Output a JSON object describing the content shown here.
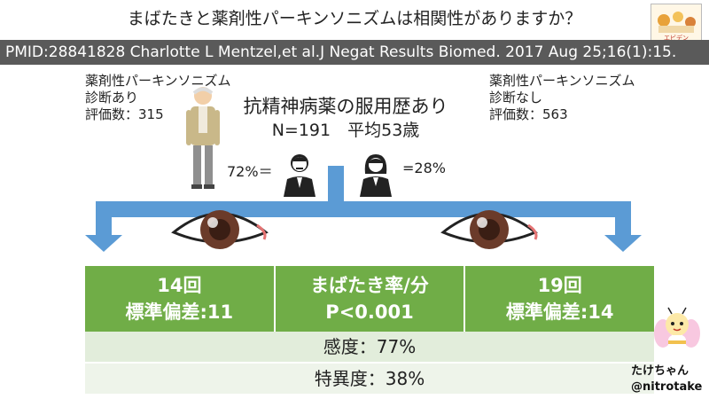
{
  "slide": {
    "title": "まばたきと薬剤性パーキンソニズムは相関性がありますか？",
    "citation": "PMID:28841828 Charlotte L Mentzel,et al.J Negat Results Biomed. 2017 Aug 25;16(1):15.",
    "logo_text": "エビデン"
  },
  "left_group": {
    "line1": "薬剤性パーキンソニズム",
    "line2": "診断あり",
    "line3": "評価数：315"
  },
  "right_group": {
    "line1": "薬剤性パーキンソニズム",
    "line2": "診断なし",
    "line3": "評価数：563"
  },
  "center": {
    "heading": "抗精神病薬の服用歴あり",
    "stats": "N=191　平均53歳",
    "male_pct": "72%＝",
    "female_pct": "=28%"
  },
  "table": {
    "left_line1": "14回",
    "left_line2": "標準偏差:11",
    "mid_line1": "まばたき率/分",
    "mid_line2": "P<0.001",
    "right_line1": "19回",
    "right_line2": "標準偏差:14",
    "sensitivity": "感度：77%",
    "specificity": "特異度：38%"
  },
  "author": {
    "name": "たけちゃん",
    "handle": "@nitrotake"
  },
  "colors": {
    "accent_blue": "#5b9bd5",
    "header_green": "#70ad47",
    "cite_bar": "#5a5a5a"
  }
}
